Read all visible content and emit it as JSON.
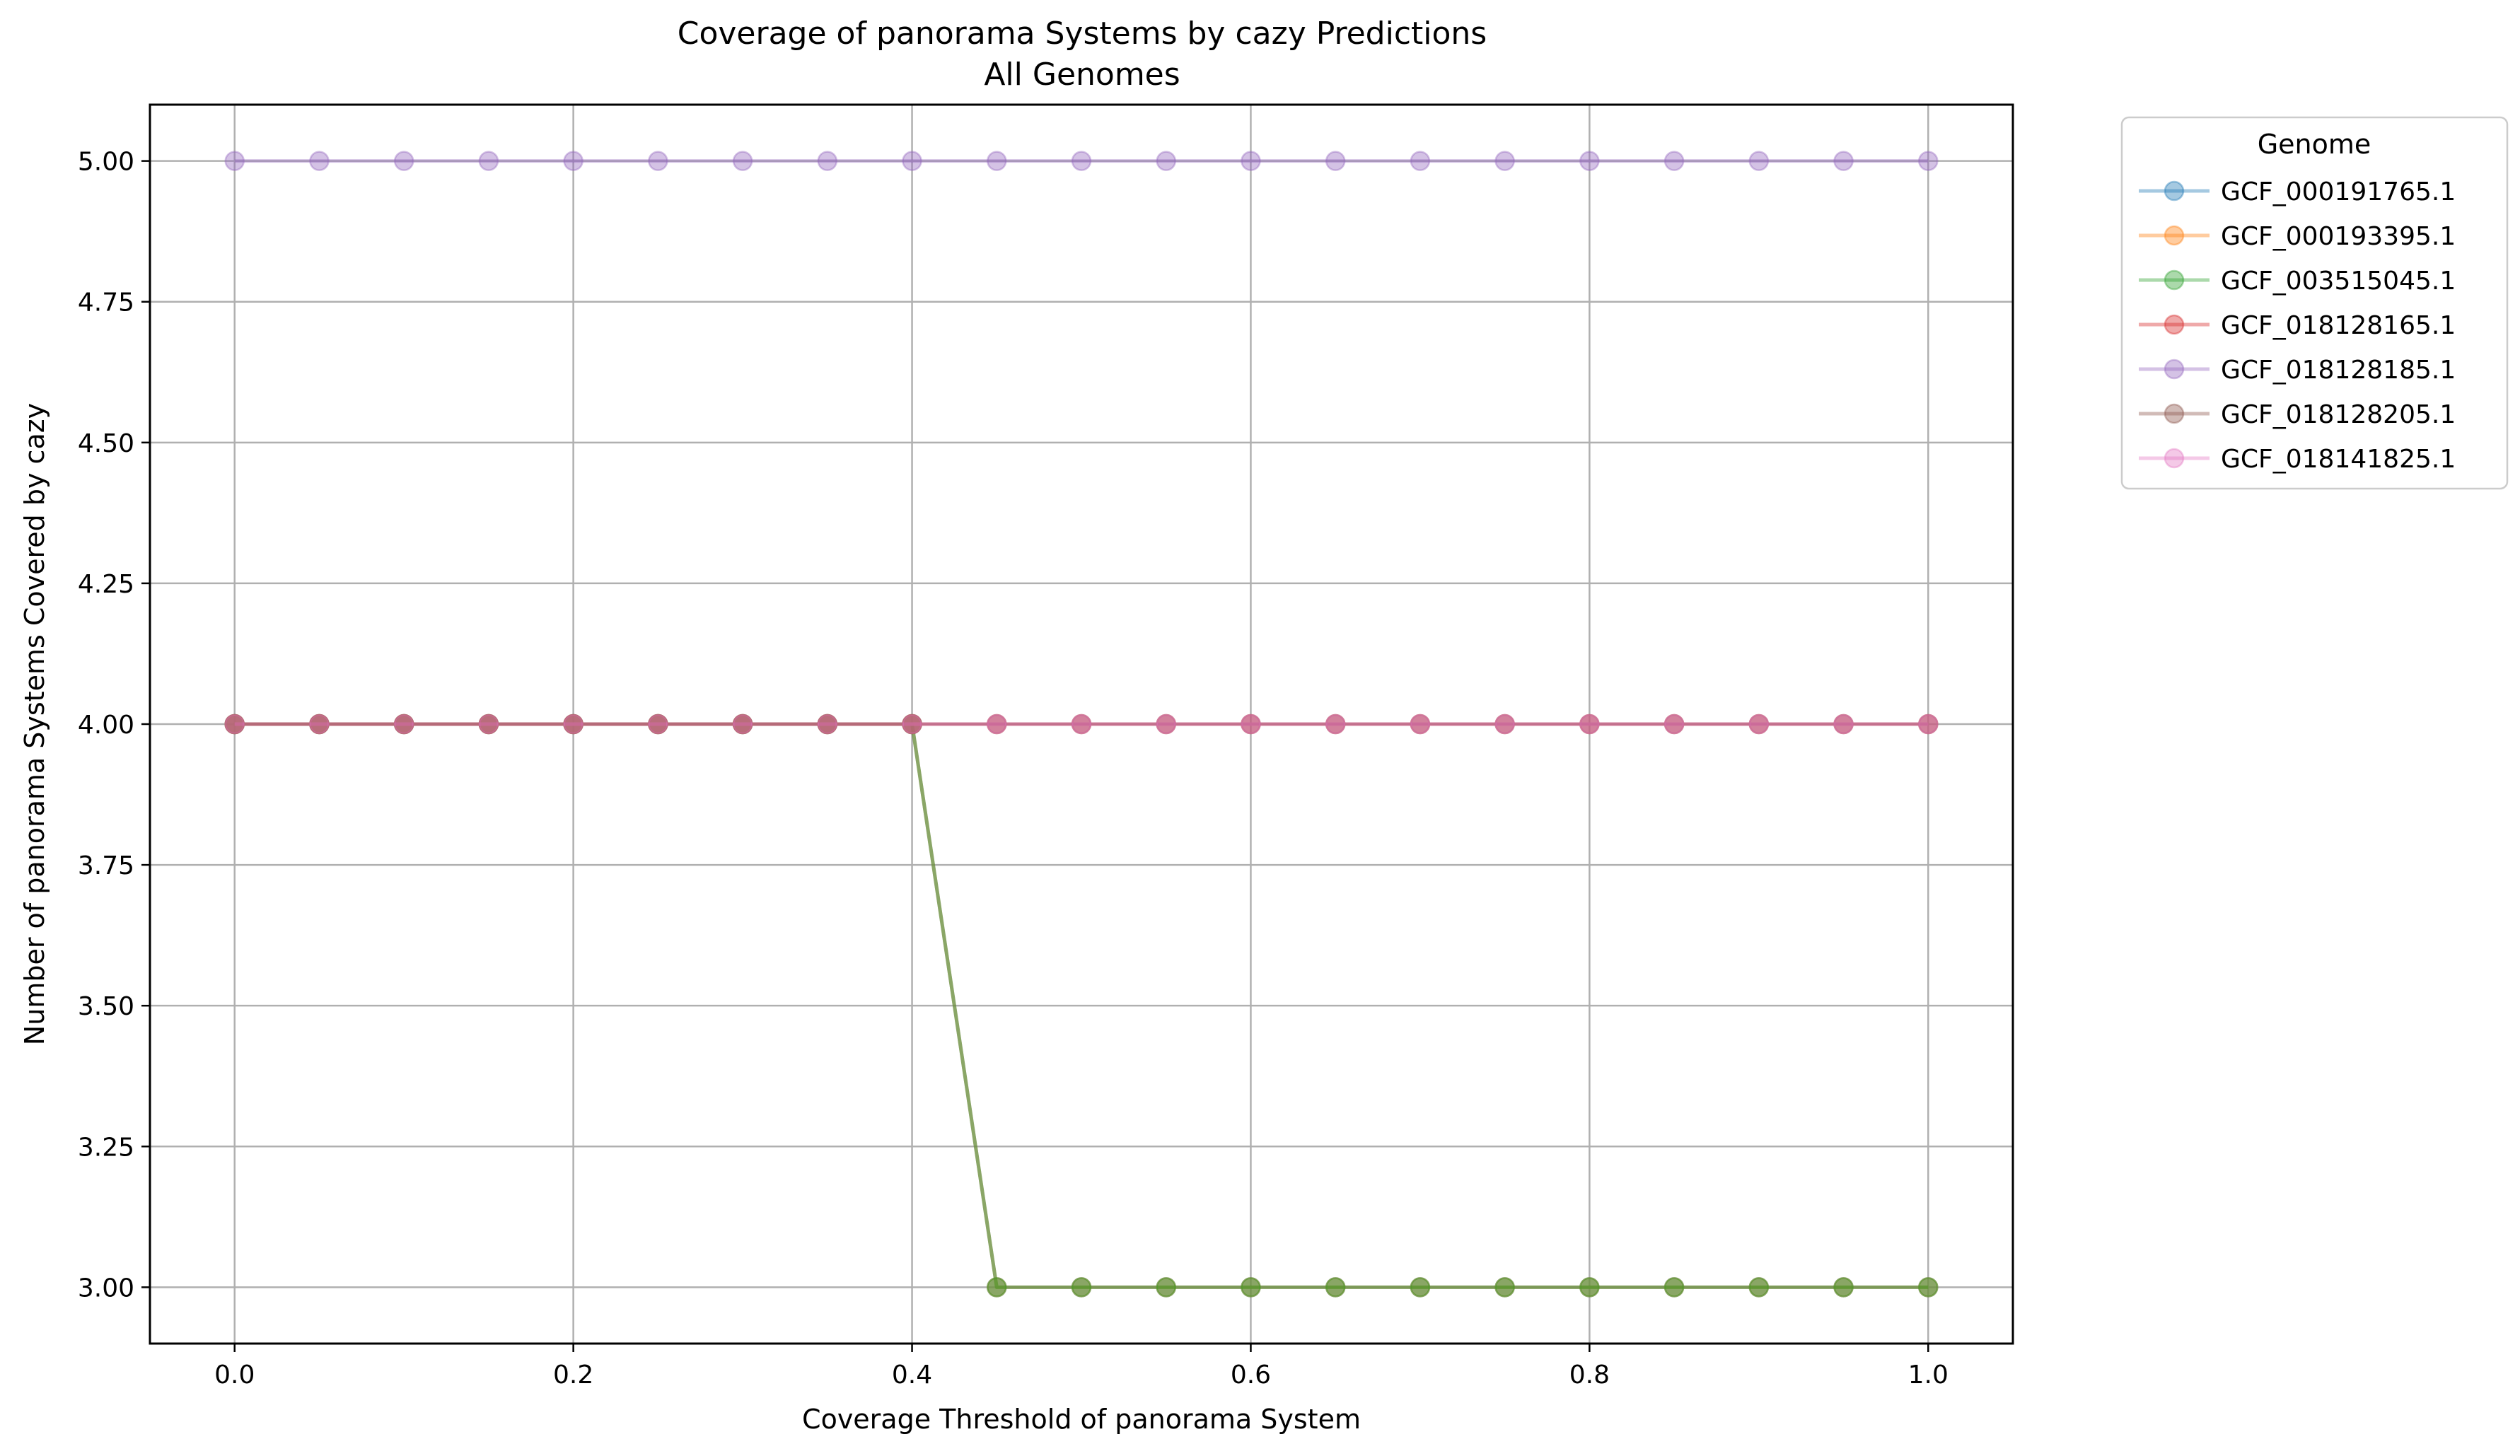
{
  "chart_data": {
    "type": "line",
    "title": "Coverage of panorama Systems by cazy Predictions",
    "subtitle": "All Genomes",
    "xlabel": "Coverage Threshold of panorama System",
    "ylabel": "Number of panorama Systems Covered by cazy",
    "xlim": [
      -0.05,
      1.05
    ],
    "ylim": [
      2.9,
      5.1
    ],
    "xticks": [
      0.0,
      0.2,
      0.4,
      0.6,
      0.8,
      1.0
    ],
    "xtick_labels": [
      "0.0",
      "0.2",
      "0.4",
      "0.6",
      "0.8",
      "1.0"
    ],
    "yticks": [
      3.0,
      3.25,
      3.5,
      3.75,
      4.0,
      4.25,
      4.5,
      4.75,
      5.0
    ],
    "ytick_labels": [
      "3.00",
      "3.25",
      "3.50",
      "3.75",
      "4.00",
      "4.25",
      "4.50",
      "4.75",
      "5.00"
    ],
    "grid": true,
    "legend_title": "Genome",
    "legend_position": "outside top-right",
    "x": [
      0.0,
      0.05,
      0.1,
      0.15,
      0.2,
      0.25,
      0.3,
      0.35,
      0.4,
      0.45,
      0.5,
      0.55,
      0.6,
      0.65,
      0.7,
      0.75,
      0.8,
      0.85,
      0.9,
      0.95,
      1.0
    ],
    "series": [
      {
        "name": "GCF_000191765.1",
        "color": "#1f77b4",
        "values": [
          4,
          4,
          4,
          4,
          4,
          4,
          4,
          4,
          4,
          3,
          3,
          3,
          3,
          3,
          3,
          3,
          3,
          3,
          3,
          3,
          3
        ]
      },
      {
        "name": "GCF_000193395.1",
        "color": "#ff7f0e",
        "values": [
          4,
          4,
          4,
          4,
          4,
          4,
          4,
          4,
          4,
          3,
          3,
          3,
          3,
          3,
          3,
          3,
          3,
          3,
          3,
          3,
          3
        ]
      },
      {
        "name": "GCF_003515045.1",
        "color": "#2ca02c",
        "values": [
          4,
          4,
          4,
          4,
          4,
          4,
          4,
          4,
          4,
          3,
          3,
          3,
          3,
          3,
          3,
          3,
          3,
          3,
          3,
          3,
          3
        ]
      },
      {
        "name": "GCF_018128165.1",
        "color": "#d62728",
        "values": [
          4,
          4,
          4,
          4,
          4,
          4,
          4,
          4,
          4,
          4,
          4,
          4,
          4,
          4,
          4,
          4,
          4,
          4,
          4,
          4,
          4
        ]
      },
      {
        "name": "GCF_018128185.1",
        "color": "#9467bd",
        "values": [
          5,
          5,
          5,
          5,
          5,
          5,
          5,
          5,
          5,
          5,
          5,
          5,
          5,
          5,
          5,
          5,
          5,
          5,
          5,
          5,
          5
        ]
      },
      {
        "name": "GCF_018128205.1",
        "color": "#8c564b",
        "values": [
          4,
          4,
          4,
          4,
          4,
          4,
          4,
          4,
          4,
          4,
          4,
          4,
          4,
          4,
          4,
          4,
          4,
          4,
          4,
          4,
          4
        ]
      },
      {
        "name": "GCF_018141825.1",
        "color": "#e377c2",
        "values": [
          4,
          4,
          4,
          4,
          4,
          4,
          4,
          4,
          4,
          4,
          4,
          4,
          4,
          4,
          4,
          4,
          4,
          4,
          4,
          4,
          4
        ]
      }
    ]
  }
}
